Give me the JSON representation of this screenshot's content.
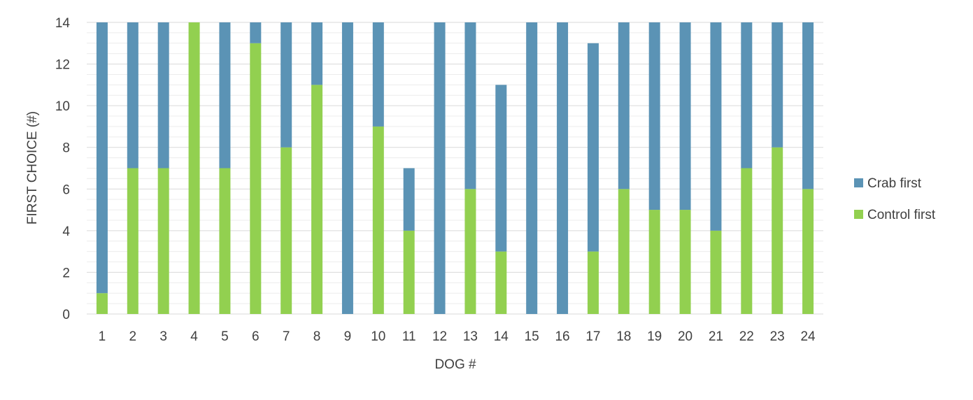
{
  "chart_data": {
    "type": "bar",
    "stacked": true,
    "title": "",
    "xlabel": "DOG #",
    "ylabel": "FIRST CHOICE (#)",
    "ylim": [
      0,
      14
    ],
    "yticks": [
      0,
      2,
      4,
      6,
      8,
      10,
      12,
      14
    ],
    "grid": true,
    "legend_position": "right",
    "categories": [
      "1",
      "2",
      "3",
      "4",
      "5",
      "6",
      "7",
      "8",
      "9",
      "10",
      "11",
      "12",
      "13",
      "14",
      "15",
      "16",
      "17",
      "18",
      "19",
      "20",
      "21",
      "22",
      "23",
      "24"
    ],
    "series": [
      {
        "name": "Control first",
        "color": "#92d050",
        "values": [
          1,
          7,
          7,
          14,
          7,
          13,
          8,
          11,
          0,
          9,
          4,
          0,
          6,
          3,
          0,
          0,
          3,
          6,
          5,
          5,
          4,
          7,
          8,
          6
        ]
      },
      {
        "name": "Crab first",
        "color": "#5b93b5",
        "values": [
          13,
          7,
          7,
          0,
          7,
          1,
          6,
          3,
          14,
          5,
          3,
          14,
          8,
          8,
          14,
          14,
          10,
          8,
          9,
          9,
          10,
          7,
          6,
          8
        ]
      }
    ],
    "legend_order": [
      "Crab first",
      "Control first"
    ]
  }
}
